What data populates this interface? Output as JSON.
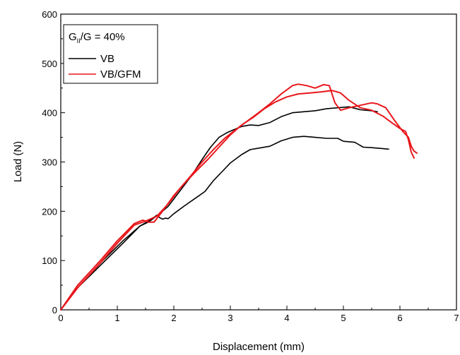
{
  "chart_data": {
    "type": "line",
    "xlabel": "Displacement (mm)",
    "ylabel": "Load (N)",
    "xlim": [
      0,
      7
    ],
    "ylim": [
      0,
      600
    ],
    "x_ticks": [
      "0",
      "1",
      "2",
      "3",
      "4",
      "5",
      "6",
      "7"
    ],
    "y_ticks": [
      "0",
      "100",
      "200",
      "300",
      "400",
      "500",
      "600"
    ],
    "grid": false,
    "legend": {
      "placement": "top-left",
      "title_main": "G",
      "title_sub": "II",
      "title_rest": "/G = 40%",
      "entries": [
        {
          "label": "VB",
          "color": "#000000"
        },
        {
          "label": "VB/GFM",
          "color": "#e8161b"
        }
      ]
    },
    "series": [
      {
        "name": "VB",
        "color": "#000000",
        "points": [
          [
            0,
            0
          ],
          [
            0.3,
            45
          ],
          [
            0.7,
            95
          ],
          [
            1.1,
            140
          ],
          [
            1.4,
            170
          ],
          [
            1.55,
            180
          ],
          [
            1.7,
            192
          ],
          [
            1.75,
            187
          ],
          [
            1.8,
            184
          ],
          [
            1.85,
            186
          ],
          [
            1.9,
            185
          ],
          [
            2.0,
            195
          ],
          [
            2.2,
            212
          ],
          [
            2.4,
            228
          ],
          [
            2.55,
            240
          ],
          [
            2.7,
            262
          ],
          [
            2.85,
            280
          ],
          [
            3.0,
            298
          ],
          [
            3.2,
            315
          ],
          [
            3.35,
            325
          ],
          [
            3.5,
            328
          ],
          [
            3.7,
            332
          ],
          [
            3.9,
            343
          ],
          [
            4.1,
            350
          ],
          [
            4.3,
            352
          ],
          [
            4.5,
            350
          ],
          [
            4.7,
            348
          ],
          [
            4.9,
            348
          ],
          [
            5.0,
            342
          ],
          [
            5.2,
            340
          ],
          [
            5.35,
            330
          ],
          [
            5.5,
            329
          ],
          [
            5.7,
            327
          ],
          [
            5.8,
            326
          ]
        ]
      },
      {
        "name": "VB",
        "color": "#000000",
        "points": [
          [
            0,
            0
          ],
          [
            0.3,
            45
          ],
          [
            0.7,
            90
          ],
          [
            1.1,
            135
          ],
          [
            1.4,
            170
          ],
          [
            1.55,
            178
          ],
          [
            1.75,
            195
          ],
          [
            1.9,
            210
          ],
          [
            2.1,
            240
          ],
          [
            2.3,
            270
          ],
          [
            2.5,
            305
          ],
          [
            2.65,
            330
          ],
          [
            2.8,
            350
          ],
          [
            2.95,
            360
          ],
          [
            3.05,
            365
          ],
          [
            3.2,
            372
          ],
          [
            3.35,
            375
          ],
          [
            3.5,
            374
          ],
          [
            3.7,
            380
          ],
          [
            3.9,
            392
          ],
          [
            4.1,
            400
          ],
          [
            4.3,
            402
          ],
          [
            4.5,
            404
          ],
          [
            4.7,
            408
          ],
          [
            4.9,
            410
          ],
          [
            5.1,
            412
          ],
          [
            5.3,
            406
          ],
          [
            5.5,
            404
          ],
          [
            5.6,
            402
          ]
        ]
      },
      {
        "name": "VB/GFM",
        "color": "#e8161b",
        "points": [
          [
            0,
            0
          ],
          [
            0.3,
            45
          ],
          [
            0.7,
            95
          ],
          [
            1.0,
            135
          ],
          [
            1.3,
            172
          ],
          [
            1.5,
            180
          ],
          [
            1.7,
            190
          ],
          [
            1.9,
            215
          ],
          [
            2.1,
            245
          ],
          [
            2.3,
            272
          ],
          [
            2.5,
            300
          ],
          [
            2.7,
            325
          ],
          [
            2.9,
            348
          ],
          [
            3.1,
            366
          ],
          [
            3.3,
            383
          ],
          [
            3.5,
            400
          ],
          [
            3.7,
            418
          ],
          [
            3.9,
            438
          ],
          [
            4.1,
            455
          ],
          [
            4.2,
            458
          ],
          [
            4.35,
            455
          ],
          [
            4.5,
            450
          ],
          [
            4.65,
            457
          ],
          [
            4.75,
            455
          ],
          [
            4.85,
            420
          ],
          [
            4.95,
            405
          ],
          [
            5.1,
            410
          ],
          [
            5.3,
            415
          ],
          [
            5.5,
            420
          ],
          [
            5.6,
            418
          ],
          [
            5.75,
            410
          ],
          [
            5.9,
            385
          ],
          [
            6.05,
            362
          ],
          [
            6.15,
            350
          ],
          [
            6.2,
            332
          ],
          [
            6.25,
            322
          ],
          [
            6.3,
            318
          ]
        ]
      },
      {
        "name": "VB/GFM",
        "color": "#e8161b",
        "points": [
          [
            0,
            0
          ],
          [
            0.3,
            50
          ],
          [
            0.7,
            100
          ],
          [
            1.0,
            140
          ],
          [
            1.3,
            175
          ],
          [
            1.45,
            182
          ],
          [
            1.55,
            178
          ],
          [
            1.65,
            178
          ],
          [
            1.8,
            200
          ],
          [
            2.0,
            232
          ],
          [
            2.2,
            258
          ],
          [
            2.4,
            282
          ],
          [
            2.6,
            305
          ],
          [
            2.8,
            330
          ],
          [
            3.0,
            355
          ],
          [
            3.2,
            375
          ],
          [
            3.4,
            390
          ],
          [
            3.6,
            408
          ],
          [
            3.8,
            422
          ],
          [
            4.0,
            432
          ],
          [
            4.2,
            438
          ],
          [
            4.4,
            440
          ],
          [
            4.6,
            442
          ],
          [
            4.8,
            445
          ],
          [
            4.95,
            440
          ],
          [
            5.1,
            425
          ],
          [
            5.3,
            410
          ],
          [
            5.5,
            405
          ],
          [
            5.7,
            393
          ],
          [
            5.85,
            380
          ],
          [
            6.0,
            368
          ],
          [
            6.1,
            362
          ],
          [
            6.15,
            345
          ],
          [
            6.2,
            320
          ],
          [
            6.25,
            308
          ]
        ]
      }
    ]
  }
}
